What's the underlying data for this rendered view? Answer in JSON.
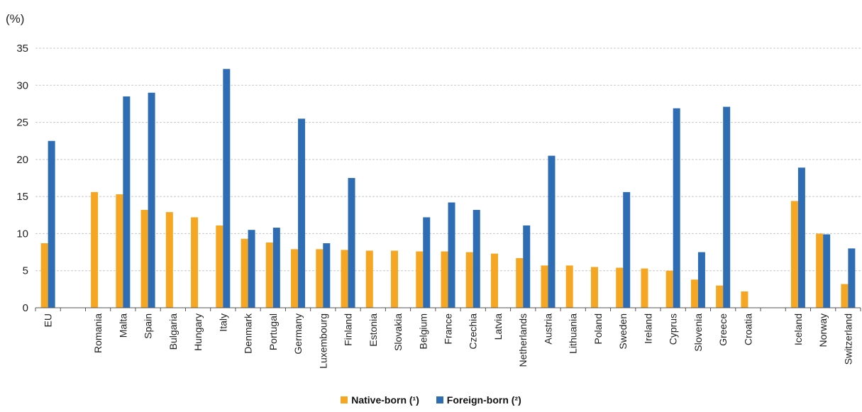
{
  "chart_data": {
    "type": "bar",
    "y_unit_label": "(%)",
    "ylim": [
      0,
      35
    ],
    "yticks": [
      0,
      5,
      10,
      15,
      20,
      25,
      30,
      35
    ],
    "grid": true,
    "legend_position": "bottom-center",
    "categories": [
      "EU",
      "",
      "Romania",
      "Malta",
      "Spain",
      "Bulgaria",
      "Hungary",
      "Italy",
      "Denmark",
      "Portugal",
      "Germany",
      "Luxembourg",
      "Finland",
      "Estonia",
      "Slovakia",
      "Belgium",
      "France",
      "Czechia",
      "Latvia",
      "Netherlands",
      "Austria",
      "Lithuania",
      "Poland",
      "Sweden",
      "Ireland",
      "Cyprus",
      "Slovenia",
      "Greece",
      "Croatia",
      "",
      "Iceland",
      "Norway",
      "Switzerland"
    ],
    "series": [
      {
        "name": "Native-born (¹)",
        "color": "#f5a623",
        "values": [
          8.7,
          null,
          15.6,
          15.3,
          13.2,
          12.9,
          12.2,
          11.1,
          9.3,
          8.8,
          7.9,
          7.9,
          7.8,
          7.7,
          7.7,
          7.6,
          7.6,
          7.5,
          7.3,
          6.7,
          5.7,
          5.7,
          5.5,
          5.4,
          5.3,
          5.0,
          3.8,
          3.0,
          2.2,
          null,
          14.4,
          10.0,
          3.2
        ]
      },
      {
        "name": "Foreign-born (²)",
        "color": "#2e6db4",
        "values": [
          22.5,
          null,
          null,
          28.5,
          29.0,
          null,
          null,
          32.2,
          10.5,
          10.8,
          25.5,
          8.7,
          17.5,
          null,
          null,
          12.2,
          14.2,
          13.2,
          null,
          11.1,
          20.5,
          null,
          null,
          15.6,
          null,
          26.9,
          7.5,
          27.1,
          null,
          null,
          18.9,
          9.9,
          8.0
        ]
      }
    ]
  }
}
